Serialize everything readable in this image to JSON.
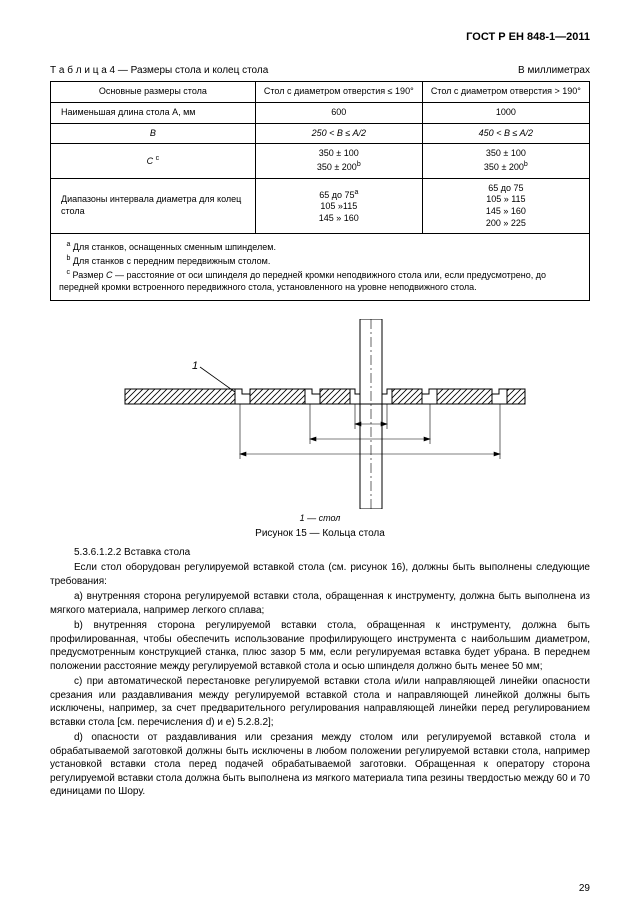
{
  "header": "ГОСТ Р ЕН 848-1—2011",
  "table_caption_left": "Т а б л и ц а 4 — Размеры стола и колец стола",
  "table_caption_right": "В миллиметрах",
  "table": {
    "r1c1": "Основные размеры стола",
    "r1c2": "Стол с диаметром отверстия ≤ 190°",
    "r1c3": "Стол с диаметром отверстия  > 190°",
    "r2c1": "Наименьшая длина стола  А, мм",
    "r2c2": "600",
    "r2c3": "1000",
    "r3c1": "B",
    "r3c2": "250 < B ≤ A/2",
    "r3c3": "450 < B ≤ A/2",
    "r4c1_html": "<span class='ital'>C</span> <sup>c</sup>",
    "r4c2_html": "350 ± 100<br>350 ± 200<sup>b</sup>",
    "r4c3_html": "350 ± 100<br>350 ± 200<sup>b</sup>",
    "r5c1": "Диапазоны интервала   диаметра для колец стола",
    "r5c2_html": "65 до 75<sup>a</sup><br>105  »115<br>145  » 160",
    "r5c3_html": "65 до 75<br>105  » 115<br>145  » 160<br>200  » 225",
    "notes_html": "&nbsp;&nbsp;&nbsp;<sup>a</sup> Для станков, оснащенных сменным шпинделем.<br>&nbsp;&nbsp;&nbsp;<sup>b</sup> Для станков с передним передвижным столом.<br>&nbsp;&nbsp;&nbsp;<sup>c</sup> Размер <span class='ital'>C</span> — расстояние от оси шпинделя до передней  кромки неподвижного стола или, если предусмотрено, до передней кромки встроенного передвижного стола, установленного на уровне неподвижного стола."
  },
  "fig_leader_num": "1",
  "fig_label": "1 — стол",
  "fig_caption": "Рисунок 15 — Кольца стола",
  "sec_title": "5.3.6.1.2.2 Вставка стола",
  "p1": "Если стол оборудован регулируемой вставкой стола (см. рисунок 16), должны быть выполнены следующие требования:",
  "p2": "a) внутренняя сторона регулируемой вставки стола, обращенная к инструменту, должна быть выполнена из мягкого материала, например легкого сплава;",
  "p3": "b) внутренняя сторона регулируемой вставки стола, обращенная к инструменту, должна быть профилированная, чтобы обеспечить использование профилирующего инструмента с наибольшим диаметром, предусмотренным конструкцией станка, плюс зазор 5 мм, если регулируемая вставка будет убрана. В переднем положении расстояние между регулируемой вставкой стола и осью шпинделя должно быть менее 50 мм;",
  "p4": "c)  при автоматической перестановке регулируемой вставки стола и/или направляющей линейки опасности срезания или раздавливания между регулируемой вставкой стола и направляющей линейкой должны быть исключены, например, за счет предварительного регулирования  направляющей линейки  перед регулированием вставки стола [см. перечисления d) и e) 5.2.8.2];",
  "p5": "d)  опасности от раздавливания или срезания между столом или регулируемой вставкой стола и обрабатываемой заготовкой должны быть исключены в любом положении регулируемой вставки стола, например установкой вставки стола перед подачей обрабатываемой заготовки. Обращенная к оператору сторона регулируемой вставки стола должна быть выполнена из мягкого материала типа резины твердостью между 60 и 70 единицами по Шору.",
  "page_number": "29"
}
